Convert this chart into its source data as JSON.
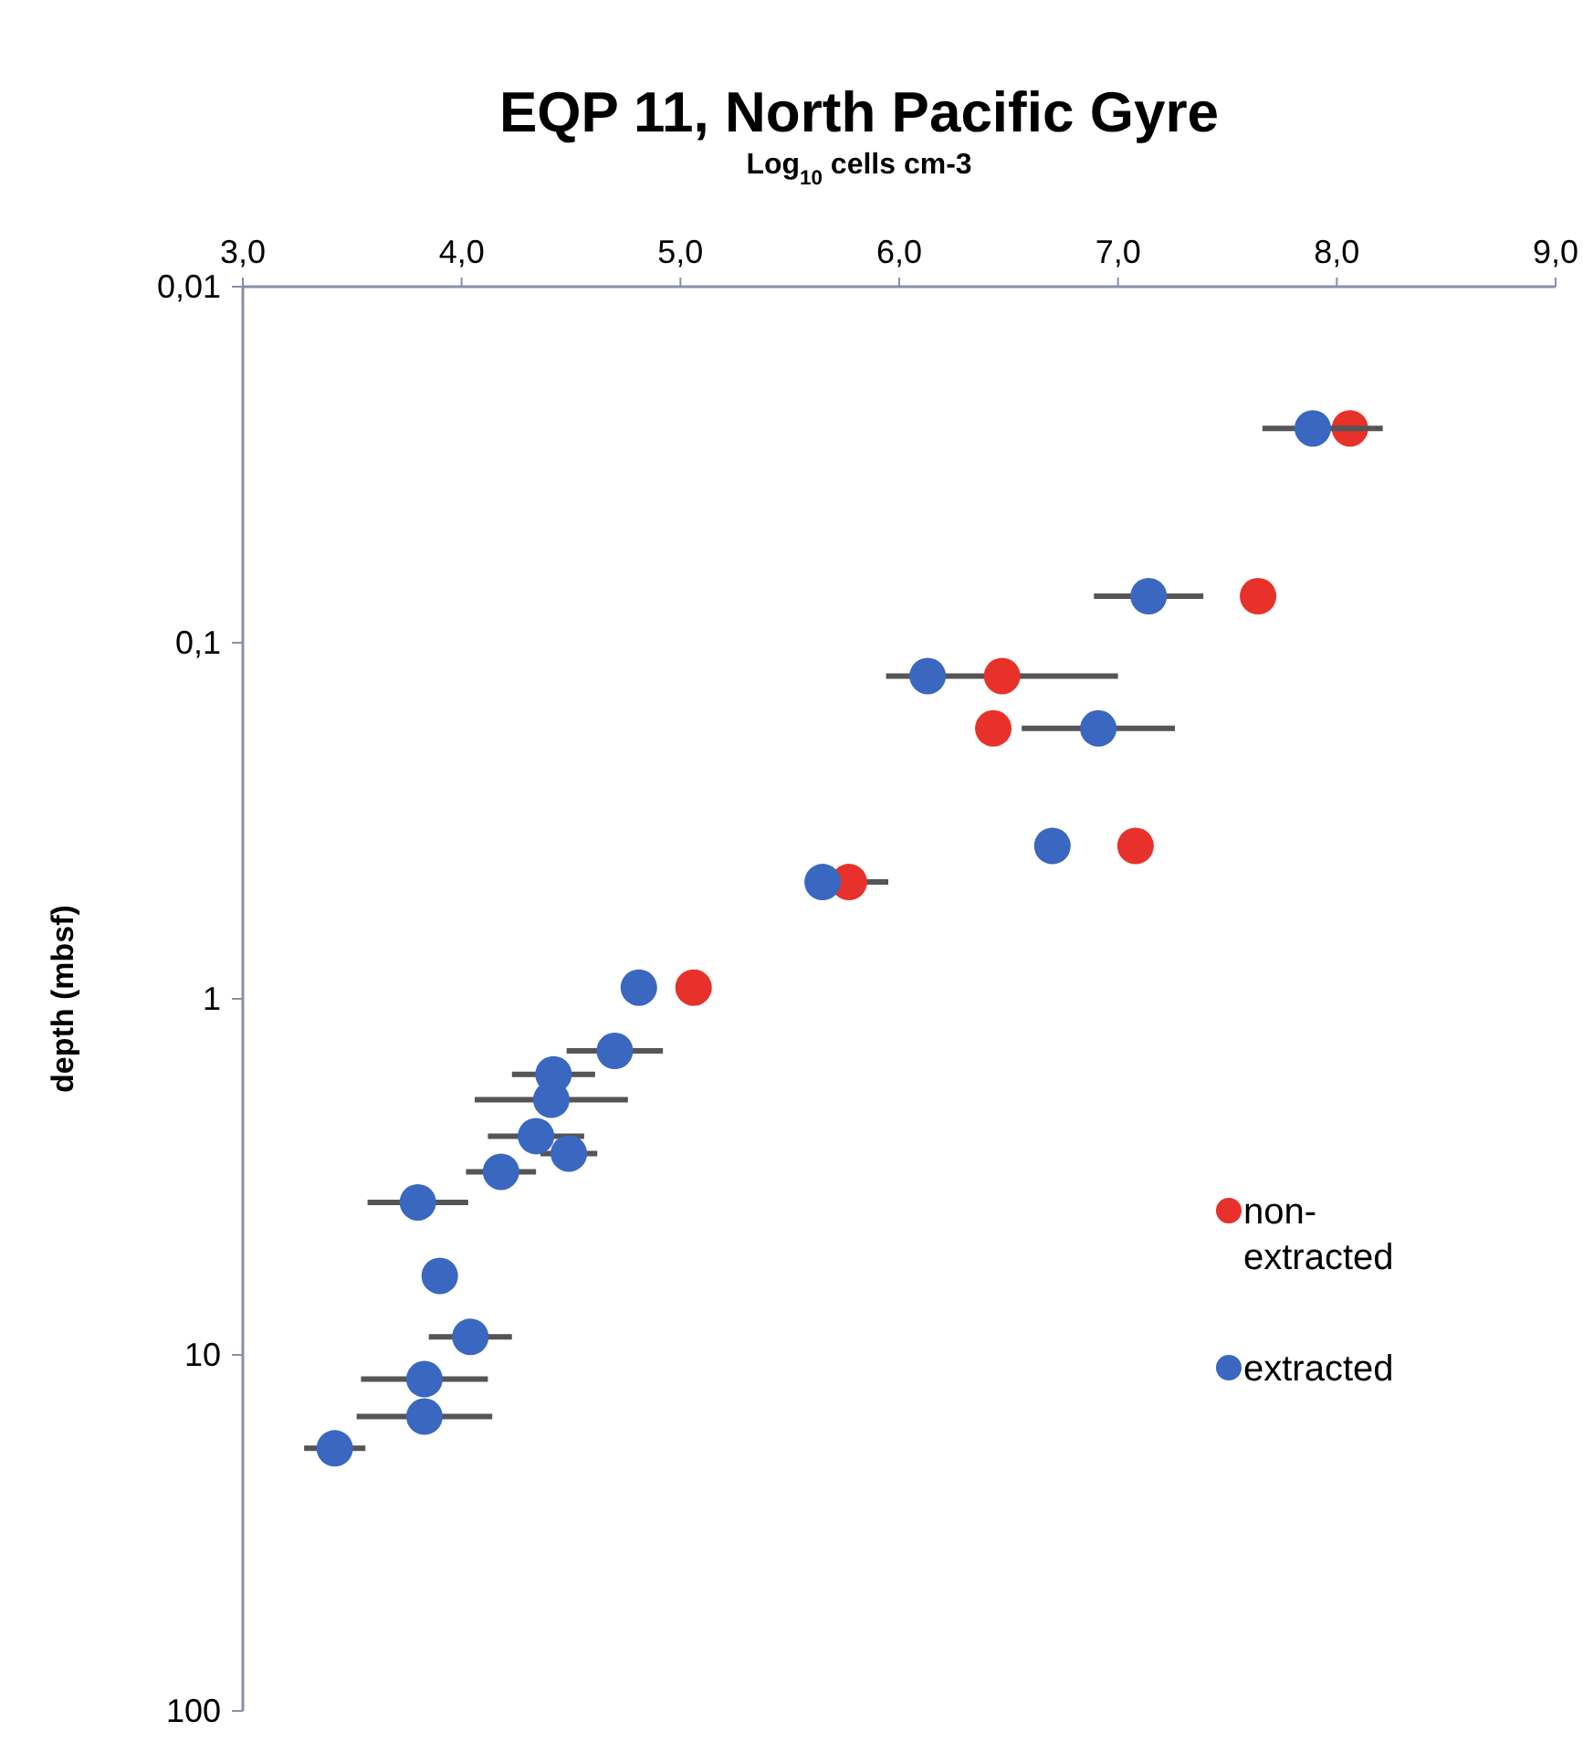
{
  "chart_data": {
    "type": "scatter",
    "title": "EQP 11, North Pacific Gyre",
    "xlabel": "Log$_{10}$ cells cm-3",
    "ylabel": "depth (mbsf)",
    "xlim": [
      3,
      9
    ],
    "xticks": [
      {
        "value": 3,
        "label": "3,0"
      },
      {
        "value": 4,
        "label": "4,0"
      },
      {
        "value": 5,
        "label": "5,0"
      },
      {
        "value": 6,
        "label": "6,0"
      },
      {
        "value": 7,
        "label": "7,0"
      },
      {
        "value": 8,
        "label": "8,0"
      },
      {
        "value": 9,
        "label": "9,0"
      }
    ],
    "ylim": [
      100,
      0.01
    ],
    "yticks": [
      {
        "value": 0.01,
        "label": "0,01"
      },
      {
        "value": 0.1,
        "label": "0,1"
      },
      1,
      10,
      100
    ],
    "log": "y",
    "grid": false,
    "legend": "right",
    "marker": "circle",
    "series": [
      {
        "name": "non-extracted",
        "color": "#e8312a",
        "x": [
          8.06,
          7.64,
          6.47,
          6.43,
          7.08,
          5.77,
          5.06
        ],
        "values": [
          0.025,
          0.074,
          0.124,
          0.174,
          0.372,
          0.47,
          0.93
        ],
        "xerrors": [
          null,
          null,
          0.53,
          null,
          null,
          0.18,
          null
        ]
      },
      {
        "name": "extracted",
        "color": "#3a67c0",
        "x": [
          7.89,
          7.14,
          6.13,
          6.91,
          6.7,
          5.65,
          4.81,
          4.7,
          4.42,
          4.41,
          4.34,
          4.49,
          4.18,
          3.8,
          3.9,
          4.04,
          3.83,
          3.83,
          3.42
        ],
        "values": [
          0.025,
          0.074,
          0.124,
          0.174,
          0.372,
          0.47,
          0.93,
          1.4,
          1.63,
          1.92,
          2.43,
          2.72,
          3.06,
          3.73,
          6.0,
          8.9,
          11.7,
          14.9,
          18.3
        ],
        "xerrors": [
          [
            7.66,
            8.21
          ],
          0.25,
          null,
          0.35,
          null,
          null,
          null,
          0.22,
          0.19,
          0.35,
          0.22,
          0.13,
          0.16,
          0.23,
          null,
          0.19,
          0.29,
          0.31,
          0.14
        ]
      }
    ]
  }
}
